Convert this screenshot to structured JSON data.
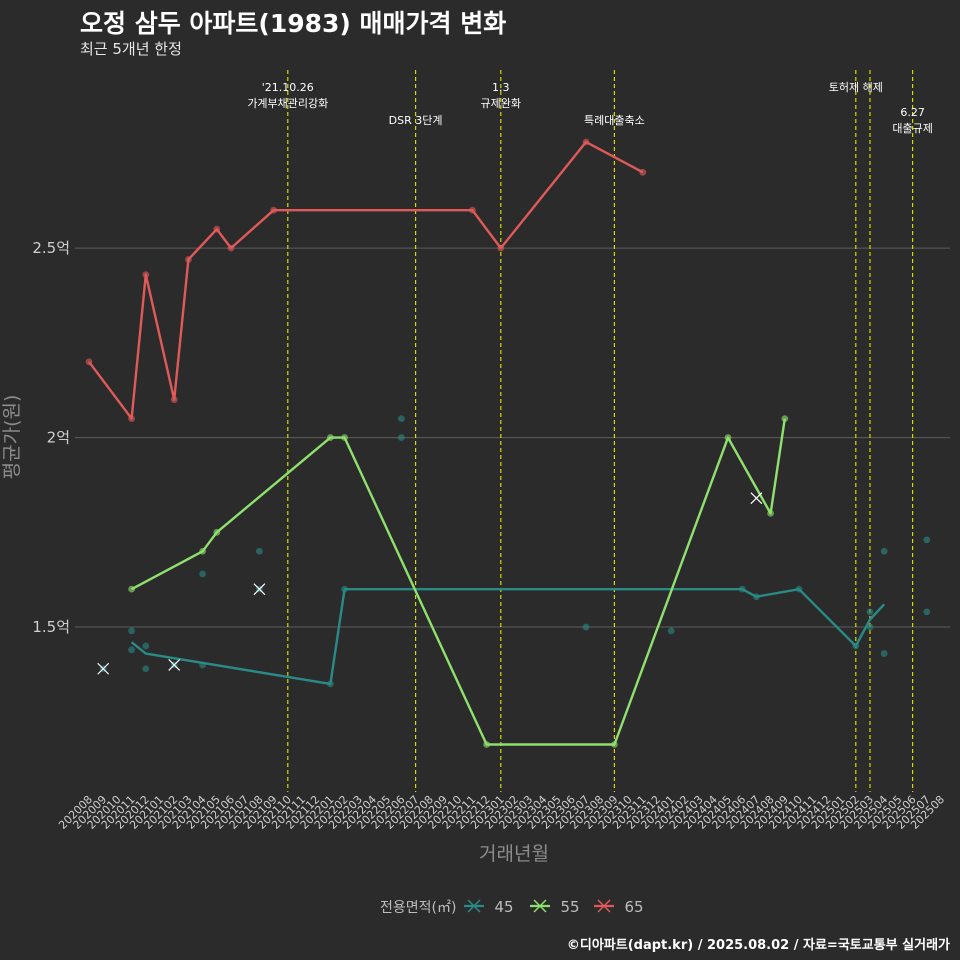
{
  "header": {
    "title": "오정 삼두 아파트(1983) 매매가격 변화",
    "subtitle": "최근 5개년 한정",
    "caption": "©디아파트(dapt.kr) / 2025.08.02 / 자료=국토교통부 실거래가"
  },
  "chart_data": {
    "type": "line",
    "title": "오정 삼두 아파트(1983) 매매가격 변화",
    "subtitle": "최근 5개년 한정",
    "xlabel": "거래년월",
    "ylabel": "평균가(원)",
    "ylim": [
      1.07,
      2.97
    ],
    "y_ticks": [
      {
        "value": 1.5,
        "label": "1.5억"
      },
      {
        "value": 2.0,
        "label": "2억"
      },
      {
        "value": 2.5,
        "label": "2.5억"
      }
    ],
    "grid": true,
    "legend": {
      "title": "전용면적(㎡)",
      "position": "bottom"
    },
    "x_categories": [
      "202008",
      "202009",
      "202010",
      "202011",
      "202012",
      "202101",
      "202102",
      "202103",
      "202104",
      "202105",
      "202106",
      "202107",
      "202108",
      "202109",
      "202110",
      "202111",
      "202112",
      "202201",
      "202202",
      "202203",
      "202204",
      "202205",
      "202206",
      "202207",
      "202208",
      "202209",
      "202210",
      "202211",
      "202212",
      "202301",
      "202302",
      "202303",
      "202304",
      "202305",
      "202306",
      "202307",
      "202308",
      "202309",
      "202310",
      "202311",
      "202312",
      "202401",
      "202402",
      "202403",
      "202404",
      "202405",
      "202406",
      "202407",
      "202408",
      "202409",
      "202410",
      "202411",
      "202412",
      "202501",
      "202502",
      "202503",
      "202504",
      "202505",
      "202506",
      "202507",
      "202508"
    ],
    "events": [
      {
        "x": "202110",
        "label": "'21.10.26\n가계부채관리강화",
        "row": 0
      },
      {
        "x": "202207",
        "label": "DSR 3단계",
        "row": 1
      },
      {
        "x": "202301",
        "label": "1.3\n규제완화",
        "row": 0
      },
      {
        "x": "202309",
        "label": "특례대출축소",
        "row": 1
      },
      {
        "x": "202502",
        "label": "토허제 해제",
        "row": 0
      },
      {
        "x": "202503",
        "label": "",
        "row": 0
      },
      {
        "x": "202506",
        "label": "6.27\n대출규제",
        "row": 2
      }
    ],
    "series": [
      {
        "name": "45",
        "color": "#2a8a86",
        "line": [
          [
            "202011",
            1.46
          ],
          [
            "202012",
            1.43
          ],
          [
            "202201",
            1.35
          ],
          [
            "202202",
            1.6
          ],
          [
            "202406",
            1.6
          ],
          [
            "202407",
            1.58
          ],
          [
            "202410",
            1.6
          ],
          [
            "202502",
            1.45
          ],
          [
            "202503",
            1.52
          ],
          [
            "202504",
            1.56
          ]
        ],
        "points": [
          [
            "202009",
            1.39
          ],
          [
            "202011",
            1.49
          ],
          [
            "202011",
            1.44
          ],
          [
            "202012",
            1.45
          ],
          [
            "202012",
            1.39
          ],
          [
            "202102",
            1.4
          ],
          [
            "202104",
            1.4
          ],
          [
            "202104",
            1.64
          ],
          [
            "202108",
            1.6
          ],
          [
            "202108",
            1.7
          ],
          [
            "202201",
            1.35
          ],
          [
            "202202",
            1.6
          ],
          [
            "202206",
            2.05
          ],
          [
            "202206",
            2.0
          ],
          [
            "202307",
            1.5
          ],
          [
            "202401",
            1.49
          ],
          [
            "202406",
            1.6
          ],
          [
            "202407",
            1.58
          ],
          [
            "202410",
            1.6
          ],
          [
            "202502",
            1.45
          ],
          [
            "202503",
            1.54
          ],
          [
            "202503",
            1.5
          ],
          [
            "202504",
            1.7
          ],
          [
            "202504",
            1.43
          ],
          [
            "202507",
            1.73
          ],
          [
            "202507",
            1.54
          ]
        ],
        "crosses": [
          [
            "202009",
            1.39
          ],
          [
            "202102",
            1.4
          ],
          [
            "202108",
            1.6
          ]
        ]
      },
      {
        "name": "55",
        "color": "#8fe06e",
        "line": [
          [
            "202011",
            1.6
          ],
          [
            "202104",
            1.7
          ],
          [
            "202105",
            1.75
          ],
          [
            "202201",
            2.0
          ],
          [
            "202202",
            2.0
          ],
          [
            "202212",
            1.19
          ],
          [
            "202309",
            1.19
          ],
          [
            "202405",
            2.0
          ],
          [
            "202408",
            1.8
          ],
          [
            "202409",
            2.05
          ]
        ],
        "points": [
          [
            "202011",
            1.6
          ],
          [
            "202104",
            1.7
          ],
          [
            "202105",
            1.75
          ],
          [
            "202201",
            2.0
          ],
          [
            "202202",
            2.0
          ],
          [
            "202212",
            1.19
          ],
          [
            "202309",
            1.19
          ],
          [
            "202405",
            2.0
          ],
          [
            "202408",
            1.8
          ],
          [
            "202409",
            2.05
          ]
        ],
        "crosses": [
          [
            "202407",
            1.84
          ]
        ]
      },
      {
        "name": "65",
        "color": "#e05a5a",
        "line": [
          [
            "202008",
            2.2
          ],
          [
            "202011",
            2.05
          ],
          [
            "202012",
            2.43
          ],
          [
            "202102",
            2.1
          ],
          [
            "202103",
            2.47
          ],
          [
            "202105",
            2.55
          ],
          [
            "202106",
            2.5
          ],
          [
            "202109",
            2.6
          ],
          [
            "202211",
            2.6
          ],
          [
            "202301",
            2.5
          ],
          [
            "202307",
            2.78
          ],
          [
            "202311",
            2.7
          ]
        ],
        "points": [
          [
            "202008",
            2.2
          ],
          [
            "202011",
            2.05
          ],
          [
            "202012",
            2.43
          ],
          [
            "202102",
            2.1
          ],
          [
            "202103",
            2.47
          ],
          [
            "202105",
            2.55
          ],
          [
            "202106",
            2.5
          ],
          [
            "202109",
            2.6
          ],
          [
            "202211",
            2.6
          ],
          [
            "202301",
            2.5
          ],
          [
            "202307",
            2.78
          ],
          [
            "202311",
            2.7
          ]
        ],
        "crosses": []
      }
    ]
  }
}
